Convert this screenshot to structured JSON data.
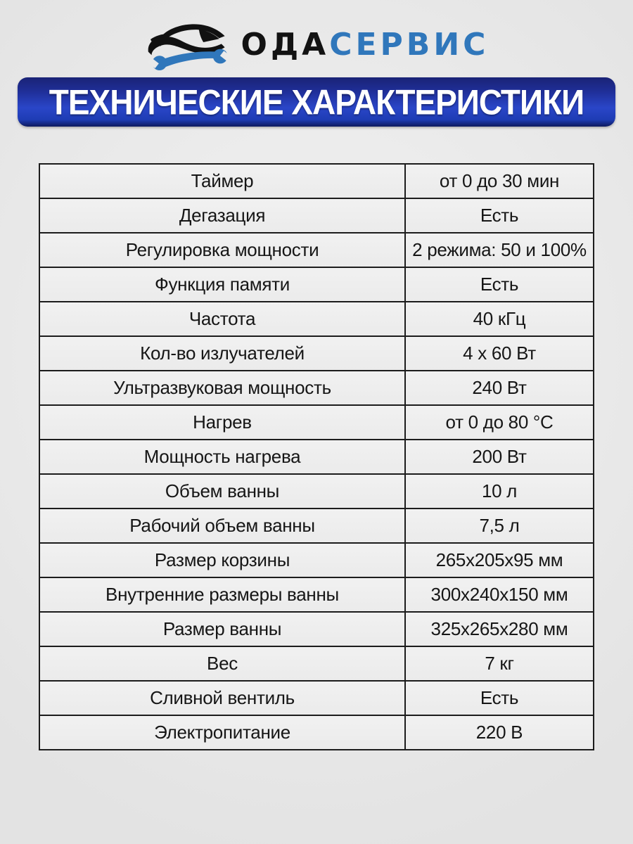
{
  "logo": {
    "icon": "car-wrench-icon",
    "brand_black": "ОДА",
    "brand_blue": "СЕРВИС"
  },
  "banner": {
    "title": "ТЕХНИЧЕСКИЕ ХАРАКТЕРИСТИКИ"
  },
  "colors": {
    "brand_blue": "#3077bb",
    "banner_blue_top": "#1a2376",
    "banner_blue_mid": "#2a46c8",
    "banner_blue_bottom": "#0e1a5e",
    "table_border": "#1c1c1c",
    "cell_background": "#efefef",
    "page_background": "#e7e7e7",
    "text": "#161616"
  },
  "spec_table": {
    "rows": [
      {
        "label": "Таймер",
        "value": "от 0 до 30 мин"
      },
      {
        "label": "Дегазация",
        "value": "Есть"
      },
      {
        "label": "Регулировка мощности",
        "value": "2 режима: 50 и 100%"
      },
      {
        "label": "Функция памяти",
        "value": "Есть"
      },
      {
        "label": "Частота",
        "value": "40 кГц"
      },
      {
        "label": "Кол-во излучателей",
        "value": "4 х 60 Вт"
      },
      {
        "label": "Ультразвуковая мощность",
        "value": "240 Вт"
      },
      {
        "label": "Нагрев",
        "value": "от 0 до 80 °С"
      },
      {
        "label": "Мощность нагрева",
        "value": "200 Вт"
      },
      {
        "label": "Объем ванны",
        "value": "10 л"
      },
      {
        "label": "Рабочий объем ванны",
        "value": "7,5 л"
      },
      {
        "label": "Размер корзины",
        "value": "265х205х95 мм"
      },
      {
        "label": "Внутренние размеры ванны",
        "value": "300х240х150 мм"
      },
      {
        "label": "Размер ванны",
        "value": "325х265х280 мм"
      },
      {
        "label": "Вес",
        "value": "7 кг"
      },
      {
        "label": "Сливной вентиль",
        "value": "Есть"
      },
      {
        "label": "Электропитание",
        "value": "220 В"
      }
    ]
  }
}
